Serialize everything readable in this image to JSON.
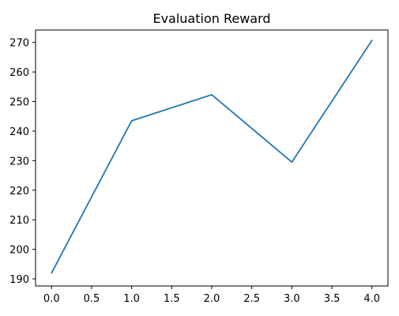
{
  "chart_data": {
    "type": "line",
    "title": "Evaluation Reward",
    "xlabel": "",
    "ylabel": "",
    "x": [
      0,
      1,
      2,
      3,
      4
    ],
    "series": [
      {
        "name": "",
        "values": [
          192.0,
          243.5,
          252.3,
          229.5,
          270.7
        ],
        "color": "#1f77b4"
      }
    ],
    "xticks": [
      0.0,
      0.5,
      1.0,
      1.5,
      2.0,
      2.5,
      3.0,
      3.5,
      4.0
    ],
    "xtick_labels": [
      "0.0",
      "0.5",
      "1.0",
      "1.5",
      "2.0",
      "2.5",
      "3.0",
      "3.5",
      "4.0"
    ],
    "yticks": [
      190,
      200,
      210,
      220,
      230,
      240,
      250,
      260,
      270
    ],
    "ytick_labels": [
      "190",
      "200",
      "210",
      "220",
      "230",
      "240",
      "250",
      "260",
      "270"
    ],
    "xlim": [
      -0.2,
      4.2
    ],
    "ylim": [
      187.6,
      274.2
    ],
    "grid": false,
    "legend": "none"
  }
}
